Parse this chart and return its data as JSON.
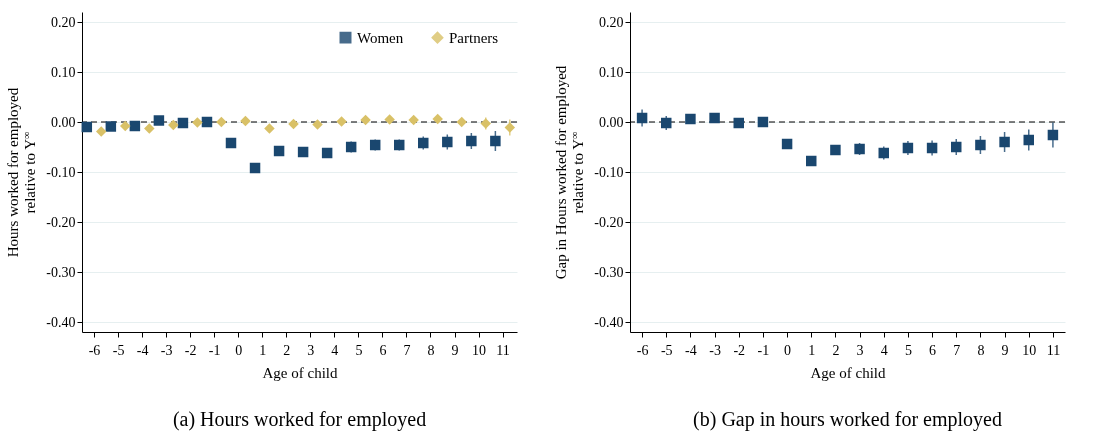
{
  "chart_data": [
    {
      "type": "scatter",
      "title": "(a) Hours worked for employed",
      "xlabel": "Age of child",
      "ylabel": "Hours worked for employed\nrelative to Y$^{∞}$",
      "xlim": [
        -6.5,
        11.6
      ],
      "xticks": [
        -6,
        -5,
        -4,
        -3,
        -2,
        -1,
        0,
        1,
        2,
        3,
        4,
        5,
        6,
        7,
        8,
        9,
        10,
        11
      ],
      "ylim": [
        -0.42,
        0.22
      ],
      "yticks": [
        {
          "value": -0.4,
          "label": "-0.40"
        },
        {
          "value": -0.3,
          "label": "-0.30"
        },
        {
          "value": -0.2,
          "label": "-0.20"
        },
        {
          "value": -0.1,
          "label": "-0.10"
        },
        {
          "value": 0,
          "label": "0.00"
        },
        {
          "value": 0.1,
          "label": "0.10"
        },
        {
          "value": 0.2,
          "label": "0.20"
        }
      ],
      "grid": "y",
      "legend": "top right",
      "ref_lines": [
        {
          "axis": "y",
          "value": 0,
          "color": "#000000",
          "line_style": "dashed"
        }
      ],
      "series": [
        {
          "name": "Women",
          "color": "#1a476f",
          "marker": "square",
          "x": [
            -6.3,
            -5.3,
            -4.3,
            -3.3,
            -2.3,
            -1.3,
            -0.3,
            0.7,
            1.7,
            2.7,
            3.7,
            4.7,
            5.7,
            6.7,
            7.7,
            8.7,
            9.7,
            10.7
          ],
          "values": [
            -0.01,
            -0.009,
            -0.008,
            0.003,
            -0.002,
            0.0,
            -0.042,
            -0.092,
            -0.058,
            -0.06,
            -0.062,
            -0.05,
            -0.046,
            -0.046,
            -0.042,
            -0.04,
            -0.038,
            -0.038
          ],
          "errors": [
            0.008,
            0.006,
            0.005,
            0.004,
            0.004,
            0.003,
            0.004,
            0.005,
            0.006,
            0.006,
            0.007,
            0.011,
            0.011,
            0.011,
            0.013,
            0.015,
            0.016,
            0.02
          ]
        },
        {
          "name": "Partners",
          "color": "#d9c167",
          "marker": "diamond",
          "x": [
            -5.7,
            -4.7,
            -3.7,
            -2.7,
            -1.7,
            -0.7,
            0.3,
            1.3,
            2.3,
            3.3,
            4.3,
            5.3,
            6.3,
            7.3,
            8.3,
            9.3,
            10.3,
            11.3
          ],
          "values": [
            -0.019,
            -0.008,
            -0.013,
            -0.006,
            -0.001,
            0.0,
            0.002,
            -0.013,
            -0.004,
            -0.005,
            0.001,
            0.004,
            0.005,
            0.004,
            0.006,
            0.0,
            -0.003,
            -0.011
          ],
          "errors": [
            0.005,
            0.005,
            0.005,
            0.005,
            0.005,
            0.005,
            0.005,
            0.005,
            0.005,
            0.005,
            0.005,
            0.006,
            0.006,
            0.006,
            0.007,
            0.006,
            0.012,
            0.016
          ]
        }
      ]
    },
    {
      "type": "scatter",
      "title": "(b) Gap in hours worked for employed",
      "xlabel": "Age of child",
      "ylabel": "Gap in Hours worked for employed\nrelative to Y$^{∞}$",
      "xlim": [
        -6.5,
        11.5
      ],
      "xticks": [
        -6,
        -5,
        -4,
        -3,
        -2,
        -1,
        0,
        1,
        2,
        3,
        4,
        5,
        6,
        7,
        8,
        9,
        10,
        11
      ],
      "ylim": [
        -0.42,
        0.22
      ],
      "yticks": [
        {
          "value": -0.4,
          "label": "-0.40"
        },
        {
          "value": -0.3,
          "label": "-0.30"
        },
        {
          "value": -0.2,
          "label": "-0.20"
        },
        {
          "value": -0.1,
          "label": "-0.10"
        },
        {
          "value": 0,
          "label": "0.00"
        },
        {
          "value": 0.1,
          "label": "0.10"
        },
        {
          "value": 0.2,
          "label": "0.20"
        }
      ],
      "grid": "y",
      "ref_lines": [
        {
          "axis": "y",
          "value": 0,
          "color": "#000000",
          "line_style": "dashed"
        }
      ],
      "series": [
        {
          "color": "#1a476f",
          "marker": "square",
          "x": [
            -6,
            -5,
            -4,
            -3,
            -2,
            -1,
            0,
            1,
            2,
            3,
            4,
            5,
            6,
            7,
            8,
            9,
            10,
            11
          ],
          "values": [
            0.008,
            -0.002,
            0.006,
            0.008,
            -0.002,
            0.0,
            -0.044,
            -0.078,
            -0.056,
            -0.054,
            -0.062,
            -0.052,
            -0.052,
            -0.05,
            -0.046,
            -0.04,
            -0.036,
            -0.026
          ],
          "errors": [
            0.017,
            0.014,
            0.01,
            0.01,
            0.007,
            0.004,
            0.006,
            0.007,
            0.01,
            0.012,
            0.013,
            0.014,
            0.015,
            0.016,
            0.018,
            0.02,
            0.021,
            0.025
          ]
        }
      ]
    }
  ]
}
